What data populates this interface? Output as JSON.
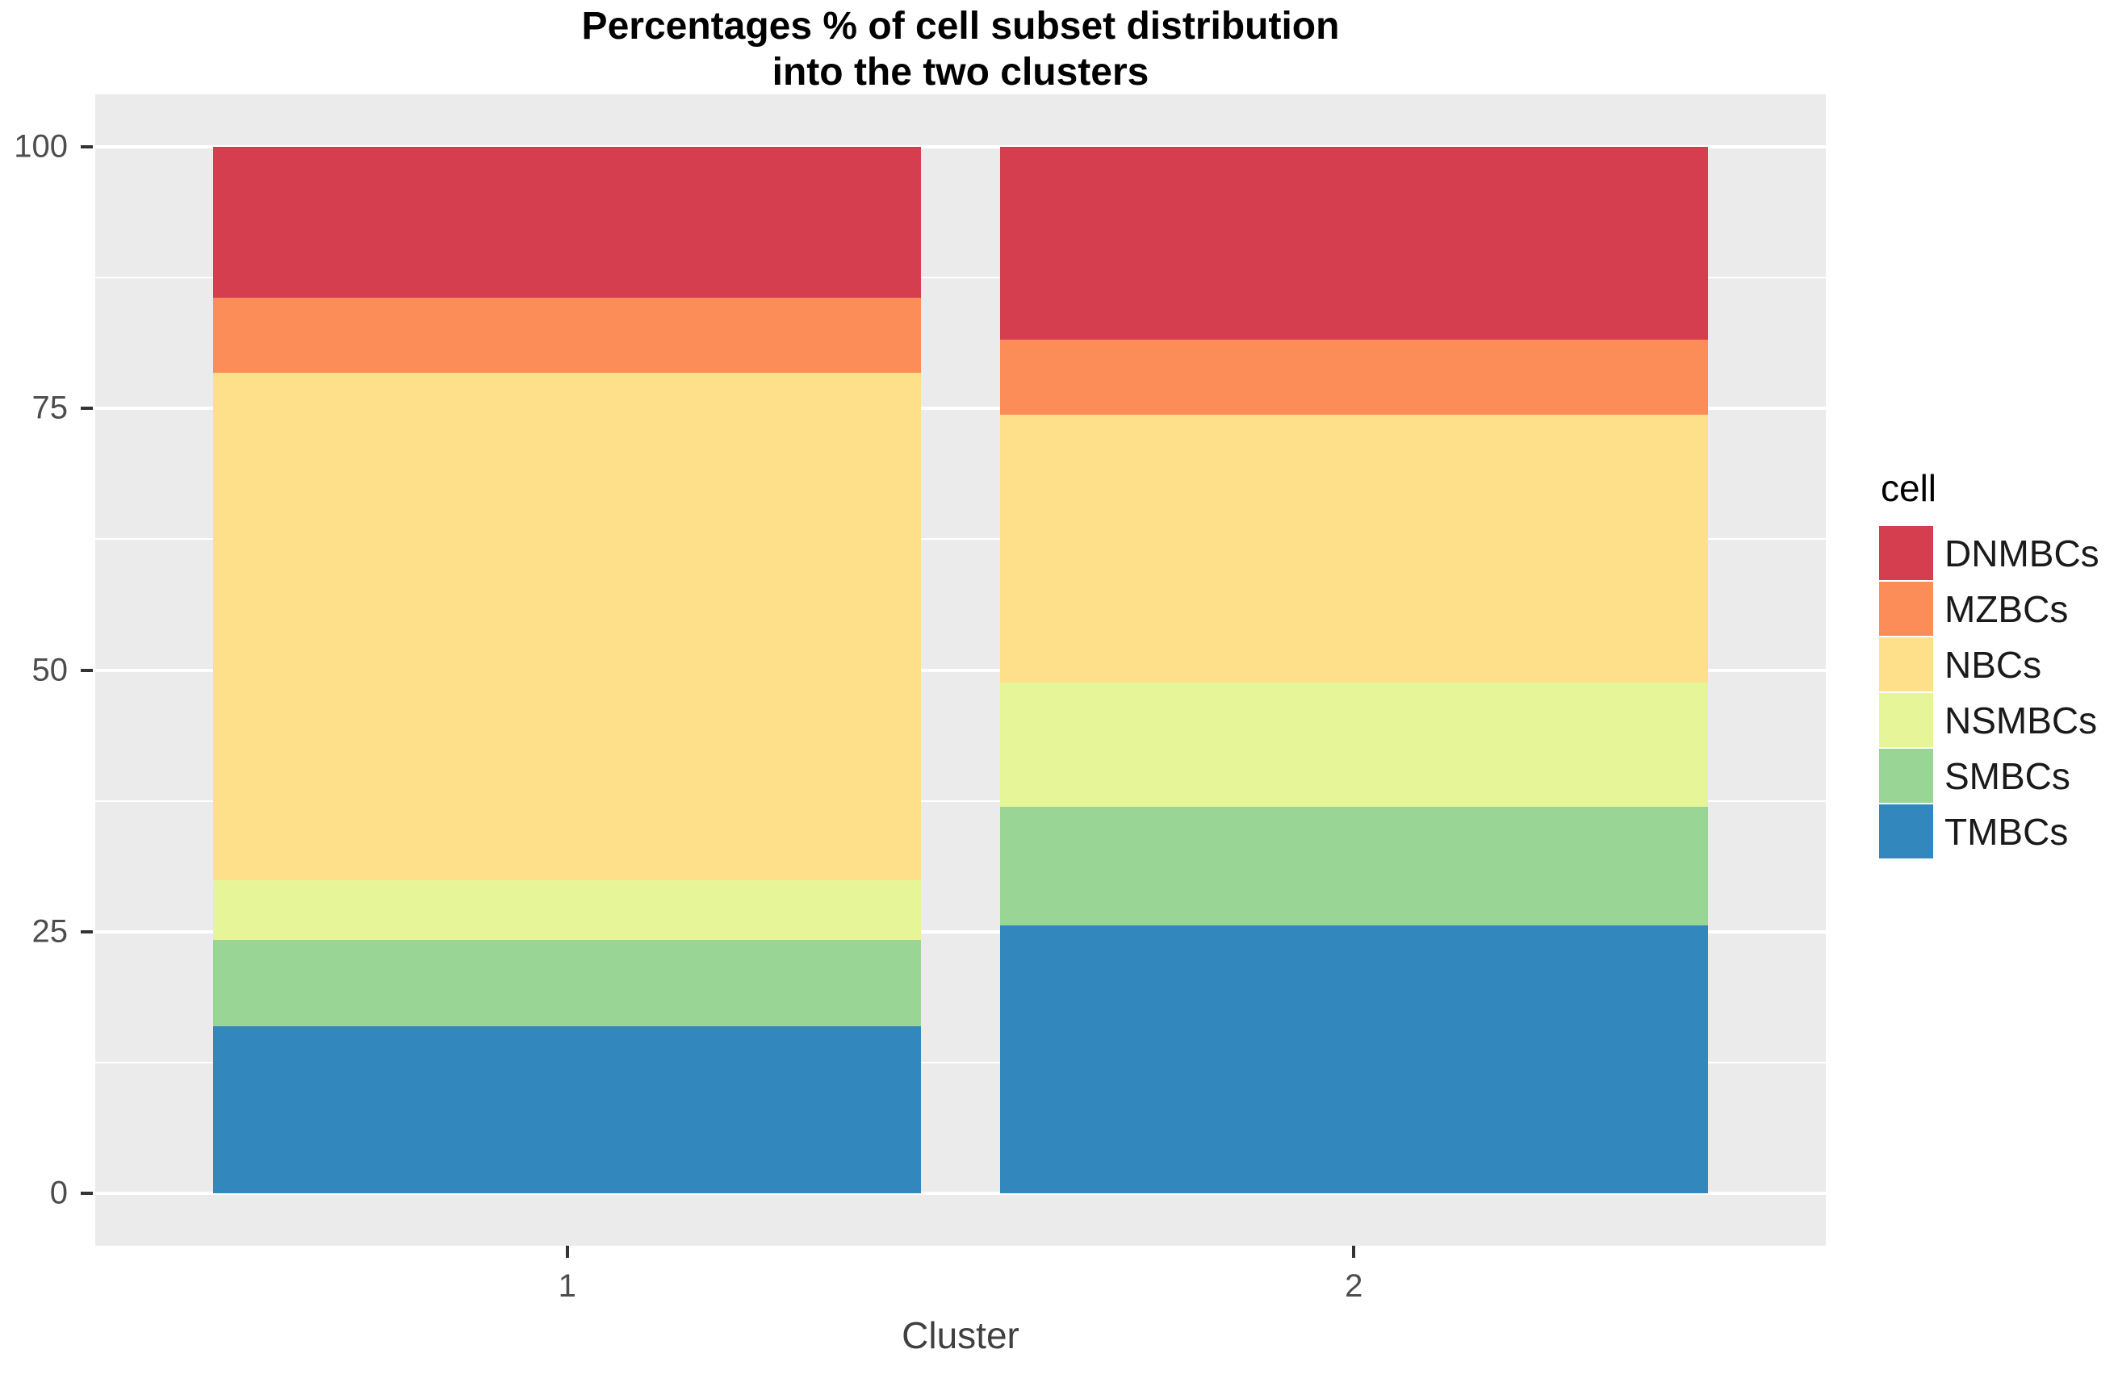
{
  "title": {
    "line1": "Percentages % of cell subset distribution",
    "line2": "into the two clusters"
  },
  "axes": {
    "x_label": "Cluster",
    "x_tick_labels": [
      "1",
      "2"
    ],
    "y_tick_labels": [
      "0",
      "25",
      "50",
      "75",
      "100"
    ]
  },
  "legend": {
    "title": "cell",
    "entries": [
      "DNMBCs",
      "MZBCs",
      "NBCs",
      "NSMBCs",
      "SMBCs",
      "TMBCs"
    ]
  },
  "colors": {
    "panel_background": "#EBEBEB",
    "gridline": "#FFFFFF",
    "tick_label": "#4D4D4D",
    "title_text": "#000000"
  },
  "chart_data": {
    "type": "bar",
    "stacked": true,
    "percent_scale": true,
    "title": "Percentages % of cell subset distribution into the two clusters",
    "xlabel": "Cluster",
    "ylabel": "",
    "categories": [
      "1",
      "2"
    ],
    "series": [
      {
        "name": "DNMBCs",
        "color": "#D53E4F",
        "values": [
          14.4,
          18.4
        ]
      },
      {
        "name": "MZBCs",
        "color": "#FC8D59",
        "values": [
          7.2,
          7.2
        ]
      },
      {
        "name": "NBCs",
        "color": "#FEE08B",
        "values": [
          48.5,
          25.6
        ]
      },
      {
        "name": "NSMBCs",
        "color": "#E6F598",
        "values": [
          5.7,
          11.9
        ]
      },
      {
        "name": "SMBCs",
        "color": "#99D594",
        "values": [
          8.2,
          11.3
        ]
      },
      {
        "name": "TMBCs",
        "color": "#3288BD",
        "values": [
          16.0,
          25.6
        ]
      }
    ],
    "stack_order_bottom_to_top": [
      "TMBCs",
      "SMBCs",
      "NSMBCs",
      "NBCs",
      "MZBCs",
      "DNMBCs"
    ],
    "ylim": [
      0,
      100
    ],
    "y_ticks": [
      0,
      25,
      50,
      75,
      100
    ],
    "y_minor_gridlines": [
      12.5,
      37.5,
      62.5,
      87.5
    ],
    "grid": true,
    "legend_title": "cell",
    "legend_position": "right"
  }
}
